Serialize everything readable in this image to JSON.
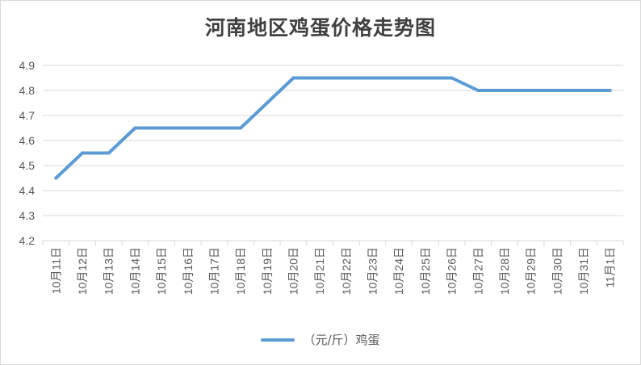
{
  "chart_data": {
    "type": "line",
    "title": "河南地区鸡蛋价格走势图",
    "xlabel": "",
    "ylabel": "",
    "categories": [
      "10月11日",
      "10月12日",
      "10月13日",
      "10月14日",
      "10月15日",
      "10月16日",
      "10月17日",
      "10月18日",
      "10月19日",
      "10月20日",
      "10月21日",
      "10月22日",
      "10月23日",
      "10月24日",
      "10月25日",
      "10月26日",
      "10月27日",
      "10月28日",
      "10月29日",
      "10月30日",
      "10月31日",
      "11月1日"
    ],
    "series": [
      {
        "name": "（元/斤）鸡蛋",
        "values": [
          4.45,
          4.55,
          4.55,
          4.65,
          4.65,
          4.65,
          4.65,
          4.65,
          4.75,
          4.85,
          4.85,
          4.85,
          4.85,
          4.85,
          4.85,
          4.85,
          4.8,
          4.8,
          4.8,
          4.8,
          4.8,
          4.8
        ]
      }
    ],
    "ylim": [
      4.2,
      4.9
    ],
    "yticks": [
      "4.2",
      "4.3",
      "4.4",
      "4.5",
      "4.6",
      "4.7",
      "4.8",
      "4.9"
    ],
    "grid": true,
    "legend_position": "bottom",
    "colors": {
      "line": "#5b9bd5",
      "grid": "#d9d9d9",
      "text": "#595959"
    }
  }
}
